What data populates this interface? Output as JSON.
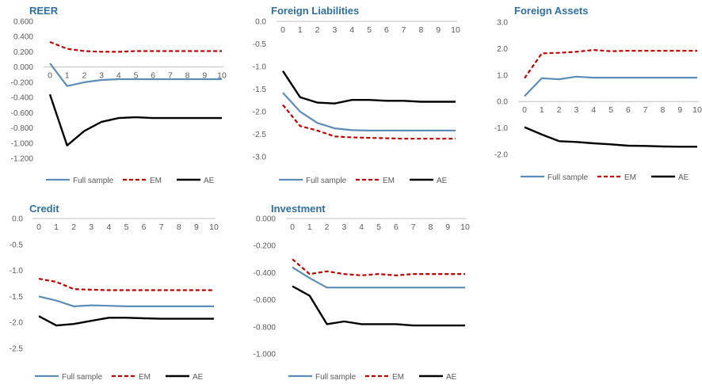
{
  "colors": {
    "full_sample": "#5b8db8",
    "em": "#c00000",
    "ae": "#000000",
    "title": "#2f6f9f",
    "axis": "#bfbfbf"
  },
  "legend_labels": {
    "full_sample": "Full sample",
    "em": "EM",
    "ae": "AE"
  },
  "chart_data": [
    {
      "type": "line",
      "title": "REER",
      "x": [
        0,
        1,
        2,
        3,
        4,
        5,
        6,
        7,
        8,
        9,
        10
      ],
      "ylim": [
        -1.2,
        0.6
      ],
      "yticks": [
        0.6,
        0.4,
        0.2,
        0.0,
        -0.2,
        -0.4,
        -0.6,
        -0.8,
        -1.0,
        -1.2
      ],
      "ytick_labels": [
        "0.600",
        "0.400",
        "0.200",
        "0.000",
        "-0.200",
        "-0.400",
        "-0.600",
        "-0.800",
        "-1.000",
        "-1.200"
      ],
      "xticks_at": 0.0,
      "grid": false,
      "legend": "bottom",
      "series": [
        {
          "name": "Full sample",
          "values": [
            0.05,
            -0.25,
            -0.2,
            -0.17,
            -0.16,
            -0.16,
            -0.16,
            -0.16,
            -0.16,
            -0.16,
            -0.16
          ]
        },
        {
          "name": "EM",
          "values": [
            0.33,
            0.24,
            0.21,
            0.2,
            0.2,
            0.21,
            0.21,
            0.21,
            0.21,
            0.21,
            0.21
          ]
        },
        {
          "name": "AE",
          "values": [
            -0.36,
            -1.03,
            -0.84,
            -0.72,
            -0.67,
            -0.66,
            -0.67,
            -0.67,
            -0.67,
            -0.67,
            -0.67
          ]
        }
      ]
    },
    {
      "type": "line",
      "title": "Foreign Liabilities",
      "x": [
        0,
        1,
        2,
        3,
        4,
        5,
        6,
        7,
        8,
        9,
        10
      ],
      "ylim": [
        -3.0,
        0.0
      ],
      "yticks": [
        0.0,
        -0.5,
        -1.0,
        -1.5,
        -2.0,
        -2.5,
        -3.0
      ],
      "ytick_labels": [
        "0.0",
        "-0.5",
        "-1.0",
        "-1.5",
        "-2.0",
        "-2.5",
        "-3.0"
      ],
      "xticks_at": 0.0,
      "grid": false,
      "legend": "bottom",
      "series": [
        {
          "name": "Full sample",
          "values": [
            -1.58,
            -2.0,
            -2.25,
            -2.37,
            -2.41,
            -2.42,
            -2.42,
            -2.42,
            -2.42,
            -2.42,
            -2.42
          ]
        },
        {
          "name": "EM",
          "values": [
            -1.85,
            -2.32,
            -2.42,
            -2.55,
            -2.57,
            -2.58,
            -2.59,
            -2.6,
            -2.6,
            -2.6,
            -2.6
          ]
        },
        {
          "name": "AE",
          "values": [
            -1.1,
            -1.68,
            -1.8,
            -1.82,
            -1.74,
            -1.74,
            -1.76,
            -1.76,
            -1.78,
            -1.78,
            -1.78
          ]
        }
      ]
    },
    {
      "type": "line",
      "title": "Foreign Assets",
      "x": [
        0,
        1,
        2,
        3,
        4,
        5,
        6,
        7,
        8,
        9,
        10
      ],
      "ylim": [
        -2.0,
        3.0
      ],
      "yticks": [
        3.0,
        2.0,
        1.0,
        0.0,
        -1.0,
        -2.0
      ],
      "ytick_labels": [
        "3.0",
        "2.0",
        "1.0",
        "0.0",
        "-1.0",
        "-2.0"
      ],
      "xticks_at": 0.0,
      "grid": false,
      "legend": "bottom",
      "series": [
        {
          "name": "Full sample",
          "values": [
            0.2,
            0.88,
            0.84,
            0.94,
            0.9,
            0.9,
            0.9,
            0.9,
            0.9,
            0.9,
            0.9
          ]
        },
        {
          "name": "EM",
          "values": [
            0.88,
            1.82,
            1.84,
            1.88,
            1.95,
            1.9,
            1.92,
            1.92,
            1.92,
            1.92,
            1.92
          ]
        },
        {
          "name": "AE",
          "values": [
            -0.97,
            -1.25,
            -1.5,
            -1.53,
            -1.58,
            -1.62,
            -1.67,
            -1.68,
            -1.7,
            -1.71,
            -1.71
          ]
        }
      ]
    },
    {
      "type": "line",
      "title": "Credit",
      "x": [
        0,
        1,
        2,
        3,
        4,
        5,
        6,
        7,
        8,
        9,
        10
      ],
      "ylim": [
        -2.5,
        0.0
      ],
      "yticks": [
        0.0,
        -0.5,
        -1.0,
        -1.5,
        -2.0,
        -2.5
      ],
      "ytick_labels": [
        "0.0",
        "-0.5",
        "-1.0",
        "-1.5",
        "-2.0",
        "-2.5"
      ],
      "xticks_at": 0.0,
      "grid": false,
      "legend": "bottom",
      "series": [
        {
          "name": "Full sample",
          "values": [
            -1.5,
            -1.58,
            -1.69,
            -1.67,
            -1.68,
            -1.69,
            -1.69,
            -1.69,
            -1.69,
            -1.69,
            -1.69
          ]
        },
        {
          "name": "EM",
          "values": [
            -1.16,
            -1.22,
            -1.36,
            -1.37,
            -1.38,
            -1.38,
            -1.38,
            -1.38,
            -1.38,
            -1.38,
            -1.38
          ]
        },
        {
          "name": "AE",
          "values": [
            -1.88,
            -2.06,
            -2.03,
            -1.97,
            -1.91,
            -1.91,
            -1.92,
            -1.93,
            -1.93,
            -1.93,
            -1.93
          ]
        }
      ]
    },
    {
      "type": "line",
      "title": "Investment",
      "x": [
        0,
        1,
        2,
        3,
        4,
        5,
        6,
        7,
        8,
        9,
        10
      ],
      "ylim": [
        -1.0,
        0.0
      ],
      "yticks": [
        0.0,
        -0.2,
        -0.4,
        -0.6,
        -0.8,
        -1.0
      ],
      "ytick_labels": [
        "0.000",
        "-0.200",
        "-0.400",
        "-0.600",
        "-0.800",
        "-1.000"
      ],
      "xticks_at": 0.0,
      "grid": false,
      "legend": "bottom",
      "series": [
        {
          "name": "Full sample",
          "values": [
            -0.36,
            -0.44,
            -0.51,
            -0.51,
            -0.51,
            -0.51,
            -0.51,
            -0.51,
            -0.51,
            -0.51,
            -0.51
          ]
        },
        {
          "name": "EM",
          "values": [
            -0.3,
            -0.41,
            -0.39,
            -0.41,
            -0.42,
            -0.41,
            -0.42,
            -0.41,
            -0.41,
            -0.41,
            -0.41
          ]
        },
        {
          "name": "AE",
          "values": [
            -0.5,
            -0.57,
            -0.78,
            -0.76,
            -0.78,
            -0.78,
            -0.78,
            -0.79,
            -0.79,
            -0.79,
            -0.79
          ]
        }
      ]
    }
  ]
}
